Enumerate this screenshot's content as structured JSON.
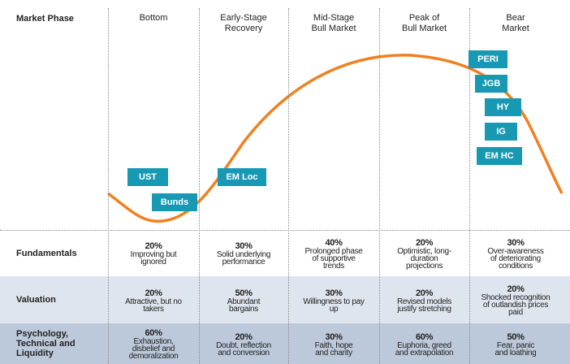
{
  "header": {
    "label": "Market Phase",
    "phases": [
      [
        "Bottom"
      ],
      [
        "Early-Stage",
        "Recovery"
      ],
      [
        "Mid-Stage",
        "Bull Market"
      ],
      [
        "Peak of",
        "Bull Market"
      ],
      [
        "Bear",
        "Market"
      ]
    ]
  },
  "curve_labels": [
    "UST",
    "Bunds",
    "EM Loc",
    "PERI",
    "JGB",
    "HY",
    "IG",
    "EM HC"
  ],
  "rows": [
    {
      "label": [
        "Fundamentals"
      ],
      "cells": [
        {
          "pct": "20%",
          "text": [
            "Improving but",
            "ignored"
          ]
        },
        {
          "pct": "30%",
          "text": [
            "Solid underlying",
            "performance"
          ]
        },
        {
          "pct": "40%",
          "text": [
            "Prolonged phase",
            "of supportive",
            "trends"
          ]
        },
        {
          "pct": "20%",
          "text": [
            "Optimistic, long-",
            "duration",
            "projections"
          ]
        },
        {
          "pct": "30%",
          "text": [
            "Over-awareness",
            "of deteriorating",
            "conditions"
          ]
        }
      ]
    },
    {
      "label": [
        "Valuation"
      ],
      "cells": [
        {
          "pct": "20%",
          "text": [
            "Attractive, but no",
            "takers"
          ]
        },
        {
          "pct": "50%",
          "text": [
            "Abundant",
            "bargains"
          ]
        },
        {
          "pct": "30%",
          "text": [
            "Willingness to pay",
            "up"
          ]
        },
        {
          "pct": "20%",
          "text": [
            "Revised models",
            "justify stretching"
          ]
        },
        {
          "pct": "20%",
          "text": [
            "Shocked recognition",
            "of outlandish prices",
            "paid"
          ]
        }
      ]
    },
    {
      "label": [
        "Psychology,",
        "Technical and",
        "Liquidity"
      ],
      "cells": [
        {
          "pct": "60%",
          "text": [
            "Exhaustion,",
            "disbelief and",
            "demoralization"
          ]
        },
        {
          "pct": "20%",
          "text": [
            "Doubt, reflection",
            "and conversion"
          ]
        },
        {
          "pct": "30%",
          "text": [
            "Faith, hope",
            "and charity"
          ]
        },
        {
          "pct": "60%",
          "text": [
            "Euphoria, greed",
            "and extrapolation"
          ]
        },
        {
          "pct": "50%",
          "text": [
            "Fear, panic",
            "and loathing"
          ]
        }
      ]
    }
  ]
}
